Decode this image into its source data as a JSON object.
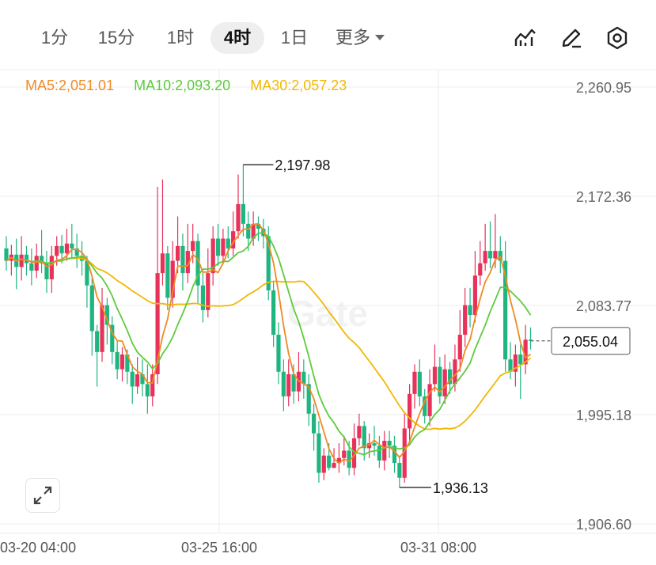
{
  "tabs": [
    {
      "label": "1分",
      "active": false
    },
    {
      "label": "15分",
      "active": false
    },
    {
      "label": "1时",
      "active": false
    },
    {
      "label": "4时",
      "active": true
    },
    {
      "label": "1日",
      "active": false
    }
  ],
  "more_label": "更多",
  "toolbar_icons": [
    "indicator-icon",
    "draw-icon",
    "settings-icon"
  ],
  "ma_legend": [
    {
      "label": "MA5:2,051.01",
      "color": "#F08A24"
    },
    {
      "label": "MA10:2,093.20",
      "color": "#5DCB3C"
    },
    {
      "label": "MA30:2,057.23",
      "color": "#F2B705"
    }
  ],
  "watermark": "Gate",
  "colors": {
    "up": "#E8325A",
    "down": "#1FB580",
    "grid": "#EEEEEE"
  },
  "chart_data": {
    "type": "candlestick",
    "y_ticks": [
      "2,260.95",
      "2,172.36",
      "2,083.77",
      "1,995.18",
      "1,906.60"
    ],
    "ylim": [
      1906.6,
      2260.95
    ],
    "x_ticks": [
      "03-20 04:00",
      "03-25 16:00",
      "03-31 08:00"
    ],
    "high_label": "2,197.98",
    "high_value": 2197.98,
    "low_label": "1,936.13",
    "low_value": 1936.13,
    "last_price_label": "2,055.04",
    "last_price": 2055.04,
    "candles": [
      [
        2130,
        2120,
        2140,
        2112
      ],
      [
        2120,
        2125,
        2133,
        2108
      ],
      [
        2125,
        2115,
        2138,
        2097
      ],
      [
        2115,
        2125,
        2140,
        2104
      ],
      [
        2125,
        2118,
        2132,
        2108
      ],
      [
        2118,
        2112,
        2130,
        2100
      ],
      [
        2112,
        2124,
        2134,
        2106
      ],
      [
        2124,
        2118,
        2145,
        2110
      ],
      [
        2118,
        2105,
        2128,
        2094
      ],
      [
        2105,
        2124,
        2132,
        2094
      ],
      [
        2124,
        2132,
        2140,
        2116
      ],
      [
        2132,
        2126,
        2141,
        2118
      ],
      [
        2126,
        2134,
        2146,
        2120
      ],
      [
        2134,
        2130,
        2150,
        2122
      ],
      [
        2130,
        2124,
        2142,
        2114
      ],
      [
        2124,
        2120,
        2136,
        2108
      ],
      [
        2120,
        2100,
        2124,
        2082
      ],
      [
        2100,
        2063,
        2106,
        2043
      ],
      [
        2063,
        2046,
        2068,
        2018
      ],
      [
        2046,
        2084,
        2098,
        2038
      ],
      [
        2084,
        2068,
        2090,
        2052
      ],
      [
        2068,
        2046,
        2075,
        2036
      ],
      [
        2046,
        2032,
        2055,
        2024
      ],
      [
        2032,
        2044,
        2050,
        2022
      ],
      [
        2044,
        2030,
        2048,
        2020
      ],
      [
        2030,
        2018,
        2036,
        2004
      ],
      [
        2018,
        2028,
        2042,
        2012
      ],
      [
        2028,
        2020,
        2040,
        2010
      ],
      [
        2020,
        2010,
        2036,
        1996
      ],
      [
        2010,
        2028,
        2036,
        2002
      ],
      [
        2028,
        2110,
        2180,
        2020
      ],
      [
        2110,
        2126,
        2186,
        2100
      ],
      [
        2126,
        2090,
        2132,
        2080
      ],
      [
        2090,
        2120,
        2136,
        2082
      ],
      [
        2120,
        2132,
        2156,
        2110
      ],
      [
        2132,
        2110,
        2142,
        2096
      ],
      [
        2110,
        2128,
        2150,
        2102
      ],
      [
        2128,
        2136,
        2150,
        2118
      ],
      [
        2136,
        2100,
        2142,
        2086
      ],
      [
        2100,
        2080,
        2112,
        2070
      ],
      [
        2080,
        2110,
        2130,
        2074
      ],
      [
        2110,
        2138,
        2148,
        2100
      ],
      [
        2138,
        2124,
        2150,
        2116
      ],
      [
        2124,
        2138,
        2146,
        2118
      ],
      [
        2138,
        2130,
        2148,
        2122
      ],
      [
        2130,
        2144,
        2160,
        2124
      ],
      [
        2144,
        2166,
        2190,
        2138
      ],
      [
        2166,
        2150,
        2198,
        2140
      ],
      [
        2150,
        2138,
        2160,
        2128
      ],
      [
        2138,
        2150,
        2160,
        2132
      ],
      [
        2150,
        2146,
        2156,
        2136
      ],
      [
        2146,
        2140,
        2154,
        2130
      ],
      [
        2140,
        2096,
        2148,
        2088
      ],
      [
        2096,
        2060,
        2104,
        2050
      ],
      [
        2060,
        2030,
        2070,
        2020
      ],
      [
        2030,
        2010,
        2040,
        1998
      ],
      [
        2010,
        2028,
        2040,
        2002
      ],
      [
        2028,
        2014,
        2036,
        2004
      ],
      [
        2014,
        2030,
        2046,
        2006
      ],
      [
        2030,
        2020,
        2040,
        2008
      ],
      [
        2020,
        1996,
        2028,
        1986
      ],
      [
        1996,
        1980,
        2004,
        1966
      ],
      [
        1980,
        1948,
        1990,
        1940
      ],
      [
        1948,
        1962,
        1968,
        1942
      ],
      [
        1962,
        1952,
        1972,
        1950
      ],
      [
        1952,
        1956,
        1968,
        1952
      ],
      [
        1956,
        1960,
        1972,
        1948
      ],
      [
        1960,
        1966,
        1978,
        1954
      ],
      [
        1966,
        1952,
        1974,
        1946
      ],
      [
        1952,
        1976,
        1988,
        1946
      ],
      [
        1976,
        1986,
        1996,
        1970
      ],
      [
        1986,
        1968,
        1990,
        1958
      ],
      [
        1968,
        1972,
        1980,
        1960
      ],
      [
        1972,
        1970,
        1986,
        1962
      ],
      [
        1970,
        1958,
        1978,
        1952
      ],
      [
        1958,
        1974,
        1982,
        1950
      ],
      [
        1974,
        1970,
        1982,
        1960
      ],
      [
        1970,
        1956,
        1978,
        1948
      ],
      [
        1956,
        1944,
        1962,
        1936
      ],
      [
        1944,
        1984,
        1996,
        1940
      ],
      [
        1984,
        2012,
        2020,
        1974
      ],
      [
        2012,
        2030,
        2036,
        2000
      ],
      [
        2030,
        2010,
        2040,
        2002
      ],
      [
        2010,
        1994,
        2016,
        1988
      ],
      [
        1994,
        2020,
        2032,
        1986
      ],
      [
        2020,
        2034,
        2052,
        2014
      ],
      [
        2034,
        2010,
        2042,
        2004
      ],
      [
        2010,
        2032,
        2044,
        2004
      ],
      [
        2032,
        2020,
        2038,
        2012
      ],
      [
        2020,
        2040,
        2052,
        2014
      ],
      [
        2040,
        2060,
        2080,
        2030
      ],
      [
        2060,
        2084,
        2098,
        2050
      ],
      [
        2084,
        2076,
        2098,
        2066
      ],
      [
        2076,
        2108,
        2128,
        2070
      ],
      [
        2108,
        2118,
        2136,
        2100
      ],
      [
        2118,
        2128,
        2150,
        2112
      ],
      [
        2128,
        2122,
        2152,
        2114
      ],
      [
        2122,
        2128,
        2158,
        2114
      ],
      [
        2128,
        2120,
        2140,
        2110
      ],
      [
        2120,
        2040,
        2136,
        2030
      ],
      [
        2040,
        2030,
        2054,
        2024
      ],
      [
        2030,
        2044,
        2052,
        2018
      ],
      [
        2044,
        2036,
        2052,
        2008
      ],
      [
        2036,
        2056,
        2068,
        2028
      ],
      [
        2056,
        2055,
        2066,
        2048
      ]
    ]
  }
}
